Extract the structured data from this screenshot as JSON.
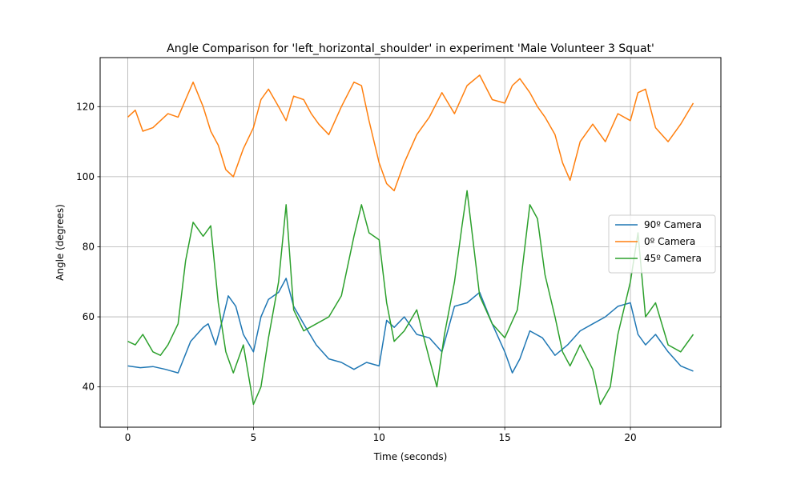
{
  "chart_data": {
    "type": "line",
    "title": "Angle Comparison for 'left_horizontal_shoulder' in experiment 'Male Volunteer 3 Squat'",
    "xlabel": "Time (seconds)",
    "ylabel": "Angle (degrees)",
    "xlim": [
      -1.1,
      23.6
    ],
    "ylim": [
      28.5,
      134
    ],
    "xticks": [
      0,
      5,
      10,
      15,
      20
    ],
    "yticks": [
      40,
      60,
      80,
      100,
      120
    ],
    "grid": true,
    "legend_position": "center-right",
    "series": [
      {
        "name": "90º Camera",
        "color": "#1f77b4",
        "x": [
          0,
          0.5,
          1,
          1.5,
          2,
          2.5,
          3,
          3.2,
          3.5,
          3.8,
          4,
          4.3,
          4.6,
          5,
          5.3,
          5.6,
          6,
          6.3,
          6.6,
          7,
          7.5,
          8,
          8.5,
          9,
          9.5,
          10,
          10.3,
          10.6,
          11,
          11.5,
          12,
          12.5,
          13,
          13.5,
          14,
          14.5,
          15,
          15.3,
          15.6,
          16,
          16.5,
          17,
          17.5,
          18,
          18.5,
          19,
          19.5,
          20,
          20.3,
          20.6,
          21,
          21.5,
          22,
          22.5
        ],
        "values": [
          46,
          45.5,
          45.8,
          45,
          44,
          53,
          57,
          58,
          52,
          60,
          66,
          63,
          55,
          50,
          60,
          65,
          67,
          71,
          63,
          58,
          52,
          48,
          47,
          45,
          47,
          46,
          59,
          57,
          60,
          55,
          54,
          50,
          63,
          64,
          67,
          58,
          50,
          44,
          48,
          56,
          54,
          49,
          52,
          56,
          58,
          60,
          63,
          64,
          55,
          52,
          55,
          50,
          46,
          44.5
        ]
      },
      {
        "name": "0º Camera",
        "color": "#ff7f0e",
        "x": [
          0,
          0.3,
          0.6,
          1,
          1.3,
          1.6,
          2,
          2.3,
          2.6,
          3,
          3.3,
          3.6,
          3.9,
          4.2,
          4.6,
          5,
          5.3,
          5.6,
          6,
          6.3,
          6.6,
          7,
          7.3,
          7.6,
          8,
          8.5,
          9,
          9.3,
          9.6,
          10,
          10.3,
          10.6,
          11,
          11.5,
          12,
          12.5,
          13,
          13.5,
          14,
          14.5,
          15,
          15.3,
          15.6,
          16,
          16.3,
          16.6,
          17,
          17.3,
          17.6,
          18,
          18.5,
          19,
          19.5,
          20,
          20.3,
          20.6,
          21,
          21.5,
          22,
          22.5
        ],
        "values": [
          117,
          119,
          113,
          114,
          116,
          118,
          117,
          122,
          127,
          120,
          113,
          109,
          102,
          100,
          108,
          114,
          122,
          125,
          120,
          116,
          123,
          122,
          118,
          115,
          112,
          120,
          127,
          126,
          116,
          104,
          98,
          96,
          104,
          112,
          117,
          124,
          118,
          126,
          129,
          122,
          121,
          126,
          128,
          124,
          120,
          117,
          112,
          104,
          99,
          110,
          115,
          110,
          118,
          116,
          124,
          125,
          114,
          110,
          115,
          121
        ]
      },
      {
        "name": "45º Camera",
        "color": "#2ca02c",
        "x": [
          0,
          0.3,
          0.6,
          1,
          1.3,
          1.6,
          2,
          2.3,
          2.6,
          3,
          3.3,
          3.6,
          3.9,
          4.2,
          4.6,
          5,
          5.3,
          5.6,
          6,
          6.3,
          6.6,
          7,
          7.5,
          8,
          8.5,
          9,
          9.3,
          9.6,
          10,
          10.3,
          10.6,
          11,
          11.5,
          12,
          12.3,
          12.6,
          13,
          13.3,
          13.5,
          14,
          14.5,
          15,
          15.5,
          16,
          16.3,
          16.6,
          17,
          17.3,
          17.6,
          18,
          18.5,
          18.8,
          19.2,
          19.5,
          20,
          20.3,
          20.6,
          21,
          21.5,
          22,
          22.5
        ],
        "values": [
          53,
          52,
          55,
          50,
          49,
          52,
          58,
          76,
          87,
          83,
          86,
          64,
          50,
          44,
          52,
          35,
          40,
          54,
          70,
          92,
          62,
          56,
          58,
          60,
          66,
          83,
          92,
          84,
          82,
          64,
          53,
          56,
          62,
          48,
          40,
          55,
          70,
          86,
          96,
          66,
          58,
          54,
          62,
          92,
          88,
          72,
          60,
          50,
          46,
          52,
          45,
          35,
          40,
          55,
          70,
          84,
          60,
          64,
          52,
          50,
          55
        ]
      }
    ]
  }
}
